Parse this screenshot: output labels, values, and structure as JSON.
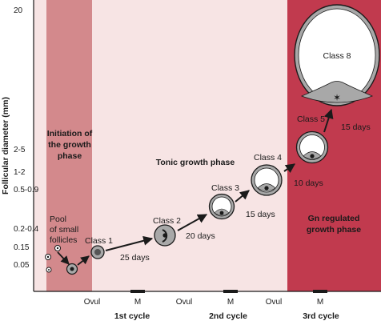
{
  "y_axis": {
    "label": "Follicular diameter (mm)",
    "ticks": [
      "20",
      "2-5",
      "1-2",
      "0.5-0.9",
      "0.2-0.4",
      "0.15",
      "0.05"
    ]
  },
  "x_axis": {
    "ticks": [
      "Ovul",
      "M",
      "Ovul",
      "M",
      "Ovul",
      "M"
    ],
    "cycles": [
      "1st cycle",
      "2nd cycle",
      "3rd cycle"
    ]
  },
  "phases": {
    "initiation": [
      "Initiation of",
      "the growth",
      "phase"
    ],
    "tonic": "Tonic growth phase",
    "gn": [
      "Gn regulated",
      "growth phase"
    ]
  },
  "pool": [
    "Pool",
    "of small",
    "follicles"
  ],
  "classes": [
    "Class 1",
    "Class 2",
    "Class 3",
    "Class 4",
    "Class 5",
    "Class 8"
  ],
  "durations": [
    "25 days",
    "20 days",
    "15 days",
    "10 days",
    "15 days"
  ],
  "colors": {
    "background": "#f7e4e4",
    "initiation_band": "#d3898c",
    "gn_band": "#c13a4e",
    "follicle_fill": "#a8a8a8",
    "axis": "#1a1a1a"
  }
}
